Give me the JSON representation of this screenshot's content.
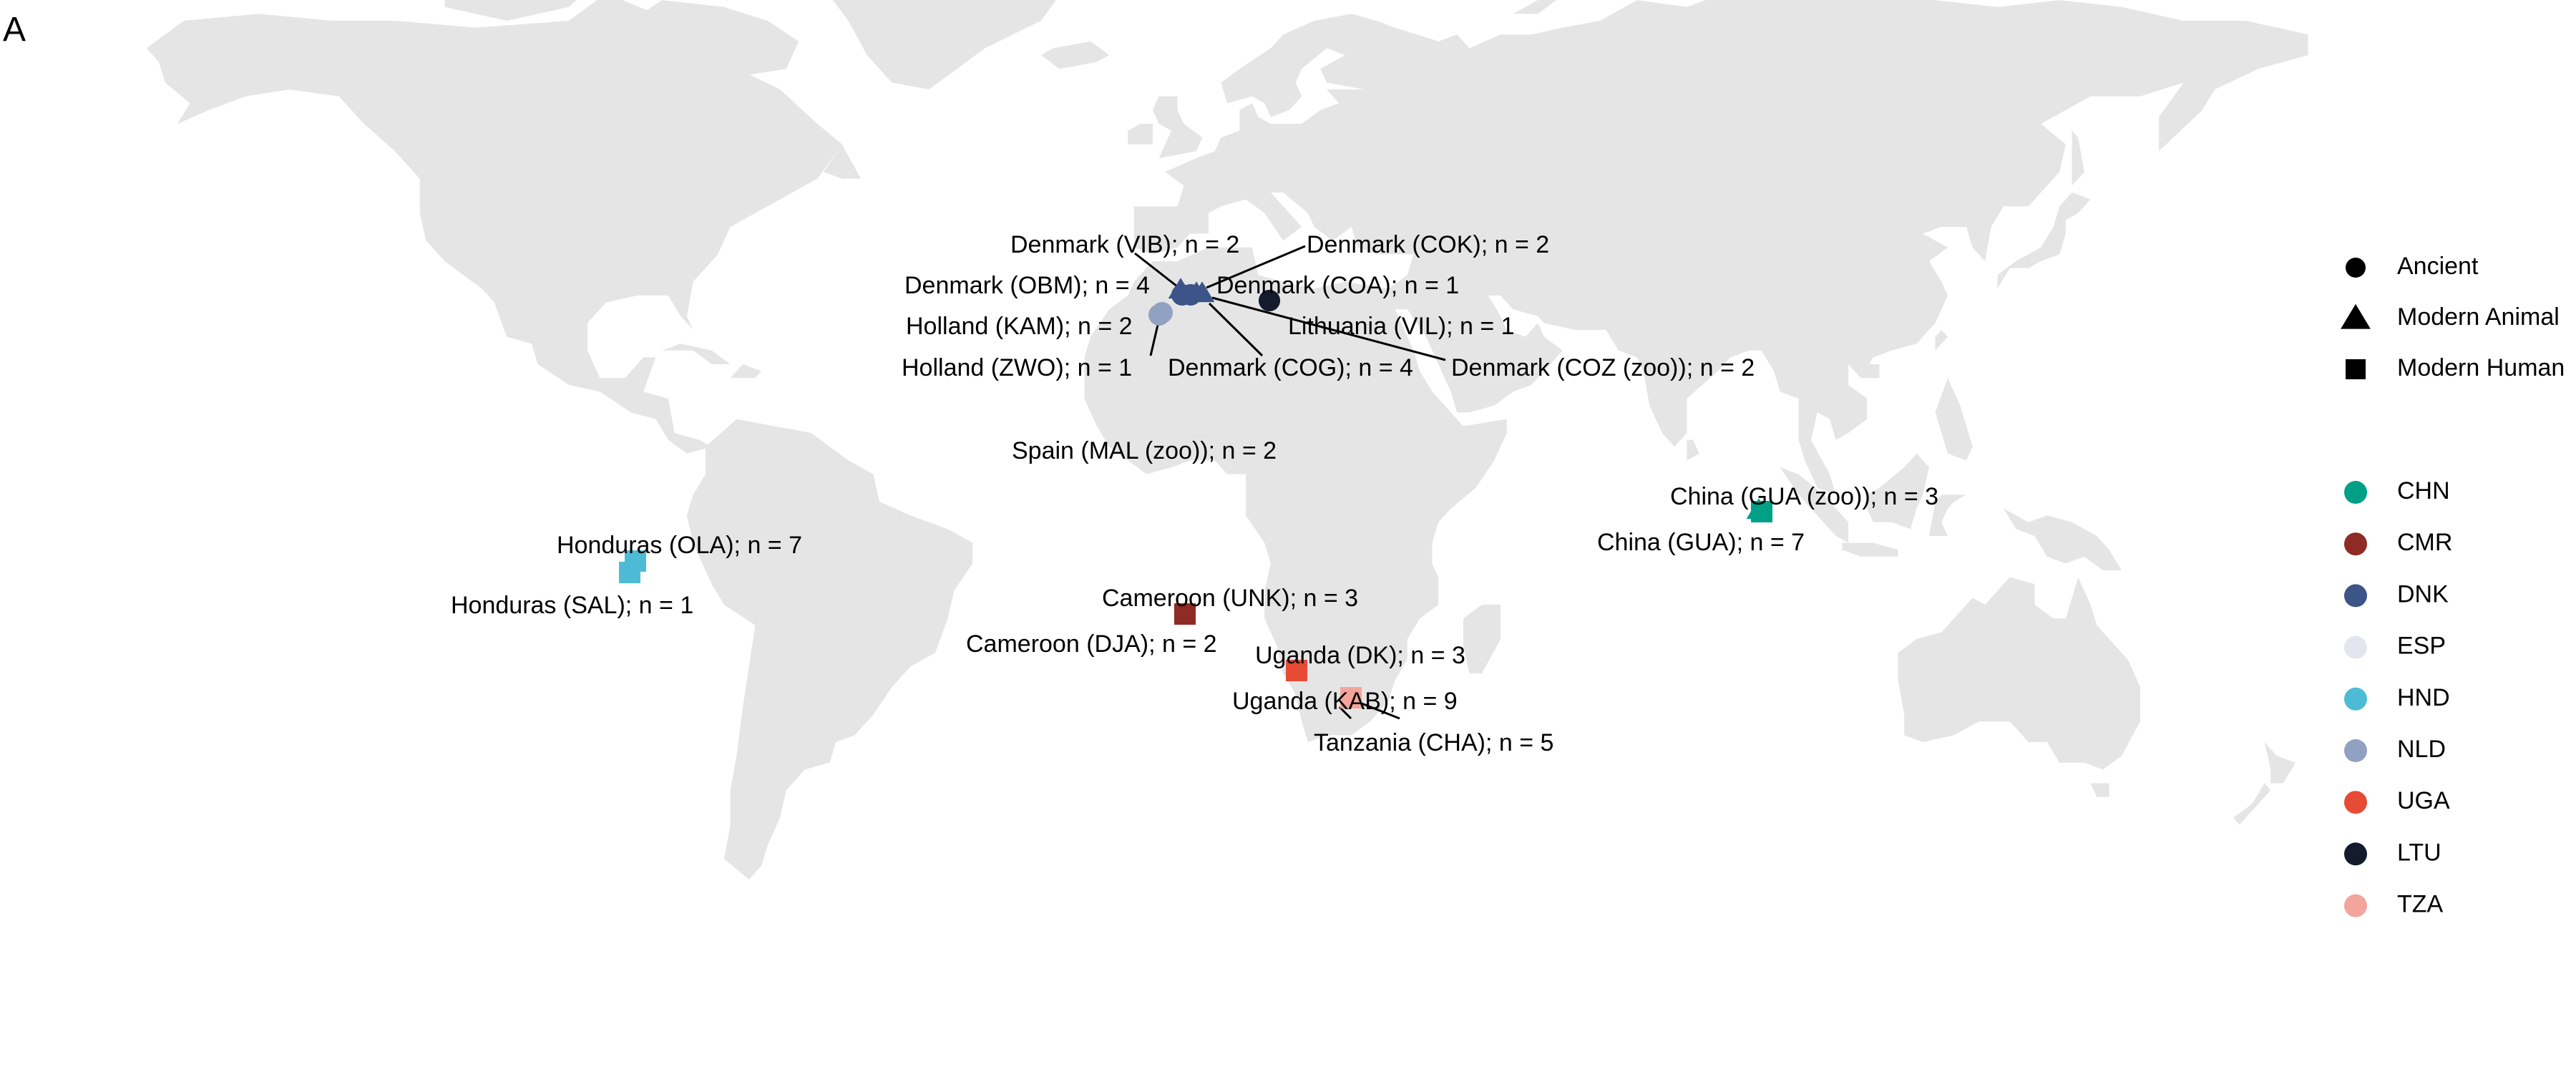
{
  "panel_label": "A",
  "colors": {
    "land": "#e5e5e5",
    "CHN": "#00a087",
    "CMR": "#8e2b24",
    "DNK": "#3c5488",
    "ESP": "#e4e6ef",
    "HND": "#4dbbd5",
    "NLD": "#91a1c1",
    "UGA": "#e64b35",
    "LTU": "#131b2c",
    "TZA": "#f3a59b"
  },
  "legend": {
    "shapes": [
      {
        "label": "Ancient",
        "icon": "circle-icon"
      },
      {
        "label": "Modern Animal",
        "icon": "triangle-icon"
      },
      {
        "label": "Modern Human",
        "icon": "square-icon"
      }
    ],
    "countries": [
      {
        "code": "CHN",
        "label": "CHN"
      },
      {
        "code": "CMR",
        "label": "CMR"
      },
      {
        "code": "DNK",
        "label": "DNK"
      },
      {
        "code": "ESP",
        "label": "ESP"
      },
      {
        "code": "HND",
        "label": "HND"
      },
      {
        "code": "NLD",
        "label": "NLD"
      },
      {
        "code": "UGA",
        "label": "UGA"
      },
      {
        "code": "LTU",
        "label": "LTU"
      },
      {
        "code": "TZA",
        "label": "TZA"
      }
    ]
  },
  "sites": [
    {
      "label": "Denmark (VIB); n = 2",
      "country": "DNK",
      "shape": "triangle",
      "lon": 9.4,
      "lat": 56.4
    },
    {
      "label": "Denmark (COK); n = 2",
      "country": "DNK",
      "shape": "triangle",
      "lon": 12.3,
      "lat": 55.7
    },
    {
      "label": "Denmark (OBM); n = 4",
      "country": "DNK",
      "shape": "circle",
      "lon": 9.0,
      "lat": 55.9
    },
    {
      "label": "Denmark (COA); n = 1",
      "country": "DNK",
      "shape": "circle",
      "lon": 12.6,
      "lat": 55.7
    },
    {
      "label": "Holland (KAM); n = 2",
      "country": "NLD",
      "shape": "circle",
      "lon": 5.9,
      "lat": 52.6
    },
    {
      "label": "Lithuania (VIL); n = 1",
      "country": "LTU",
      "shape": "circle",
      "lon": 25.3,
      "lat": 54.7
    },
    {
      "label": "Holland (ZWO); n = 1",
      "country": "NLD",
      "shape": "circle",
      "lon": 6.1,
      "lat": 52.5
    },
    {
      "label": "Denmark (COG); n = 4",
      "country": "DNK",
      "shape": "circle",
      "lon": 12.1,
      "lat": 55.5
    },
    {
      "label": "Denmark (COZ (zoo)); n = 2",
      "country": "DNK",
      "shape": "triangle",
      "lon": 12.5,
      "lat": 55.7
    },
    {
      "label": "Spain (MAL (zoo)); n = 2",
      "country": "ESP",
      "shape": "triangle",
      "lon": -4.4,
      "lat": 36.7
    },
    {
      "label": "China (GUA (zoo)); n = 3",
      "country": "CHN",
      "shape": "triangle",
      "lon": 113.3,
      "lat": 23.1
    },
    {
      "label": "China (GUA); n = 7",
      "country": "CHN",
      "shape": "square",
      "lon": 113.2,
      "lat": 23.0
    },
    {
      "label": "Honduras (OLA); n = 7",
      "country": "HND",
      "shape": "square",
      "lon": -86.5,
      "lat": 14.9
    },
    {
      "label": "Honduras (SAL); n = 1",
      "country": "HND",
      "shape": "square",
      "lon": -87.0,
      "lat": 14.2
    },
    {
      "label": "Cameroon (UNK); n = 3",
      "country": "CMR",
      "shape": "square",
      "lon": 12.1,
      "lat": 3.9
    },
    {
      "label": "Cameroon (DJA); n = 2",
      "country": "CMR",
      "shape": "square",
      "lon": 12.6,
      "lat": 3.4
    },
    {
      "label": "Uganda (DK); n = 3",
      "country": "UGA",
      "shape": "square",
      "lon": 30.4,
      "lat": -0.6
    },
    {
      "label": "Uganda (KAB); n = 9",
      "country": "UGA",
      "shape": "square",
      "lon": 30.8,
      "lat": -0.8
    },
    {
      "label": "Tanzania (CHA); n = 5",
      "country": "TZA",
      "shape": "square",
      "lon": 39.1,
      "lat": -5.1
    }
  ]
}
